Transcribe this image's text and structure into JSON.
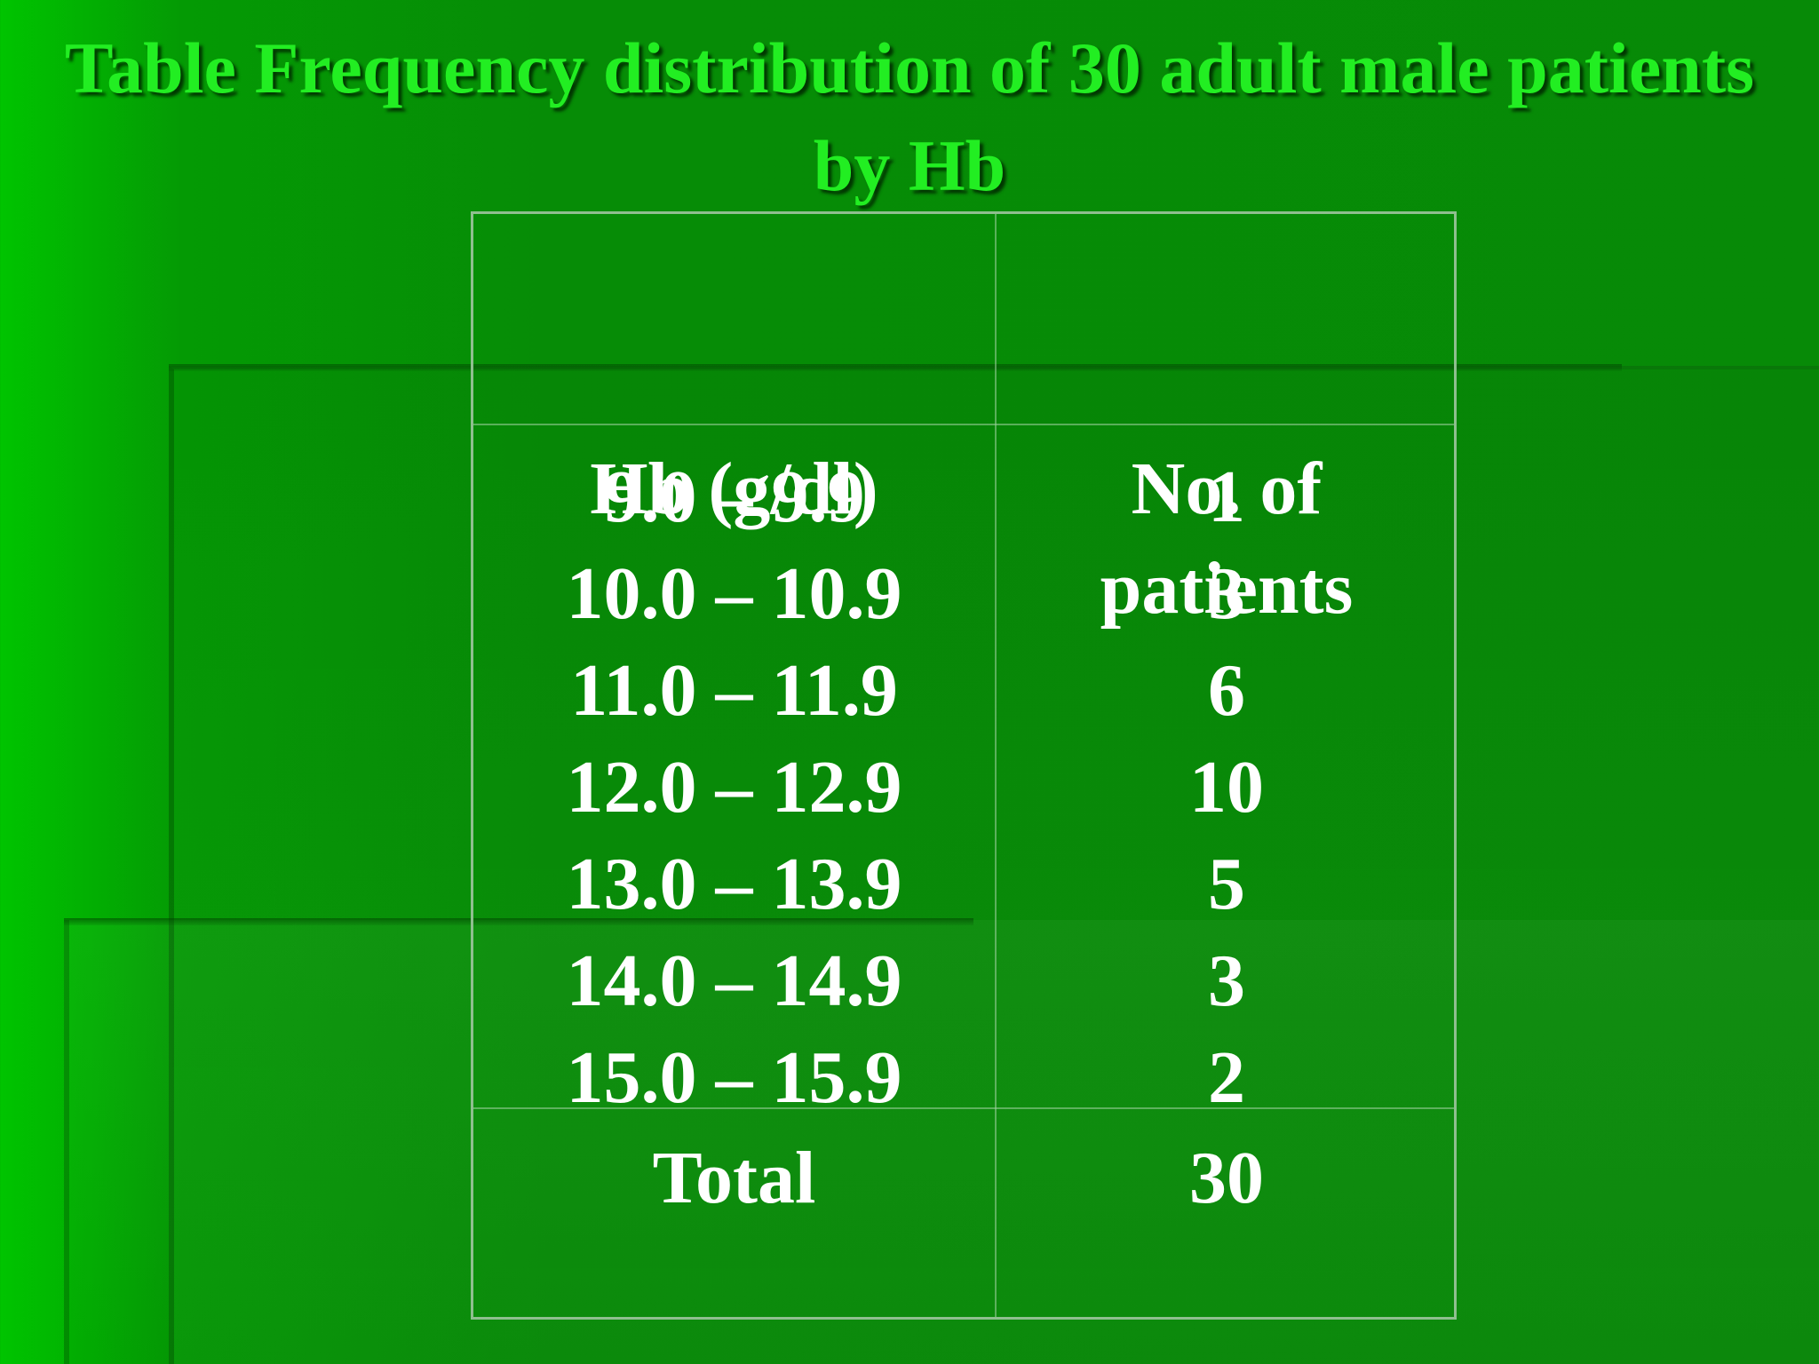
{
  "slide": {
    "title": "Table Frequency distribution of 30 adult male patients by Hb"
  },
  "table": {
    "headers": [
      "Hb (g/dl)",
      "No. of patients"
    ],
    "header_col2_lines": [
      "No. of",
      "patients"
    ],
    "rows": [
      {
        "range": "9.0 – 9.9",
        "count": "1"
      },
      {
        "range": "10.0 – 10.9",
        "count": "3"
      },
      {
        "range": "11.0 – 11.9",
        "count": "6"
      },
      {
        "range": "12.0 – 12.9",
        "count": "10"
      },
      {
        "range": "13.0 – 13.9",
        "count": "5"
      },
      {
        "range": "14.0 – 14.9",
        "count": "3"
      },
      {
        "range": "15.0 – 15.9",
        "count": "2"
      }
    ],
    "total": {
      "label": "Total",
      "count": "30"
    }
  },
  "colors": {
    "background": "#078a07",
    "title": "#22ee22",
    "text": "#ffffff",
    "grid": "#8fbf8f"
  }
}
